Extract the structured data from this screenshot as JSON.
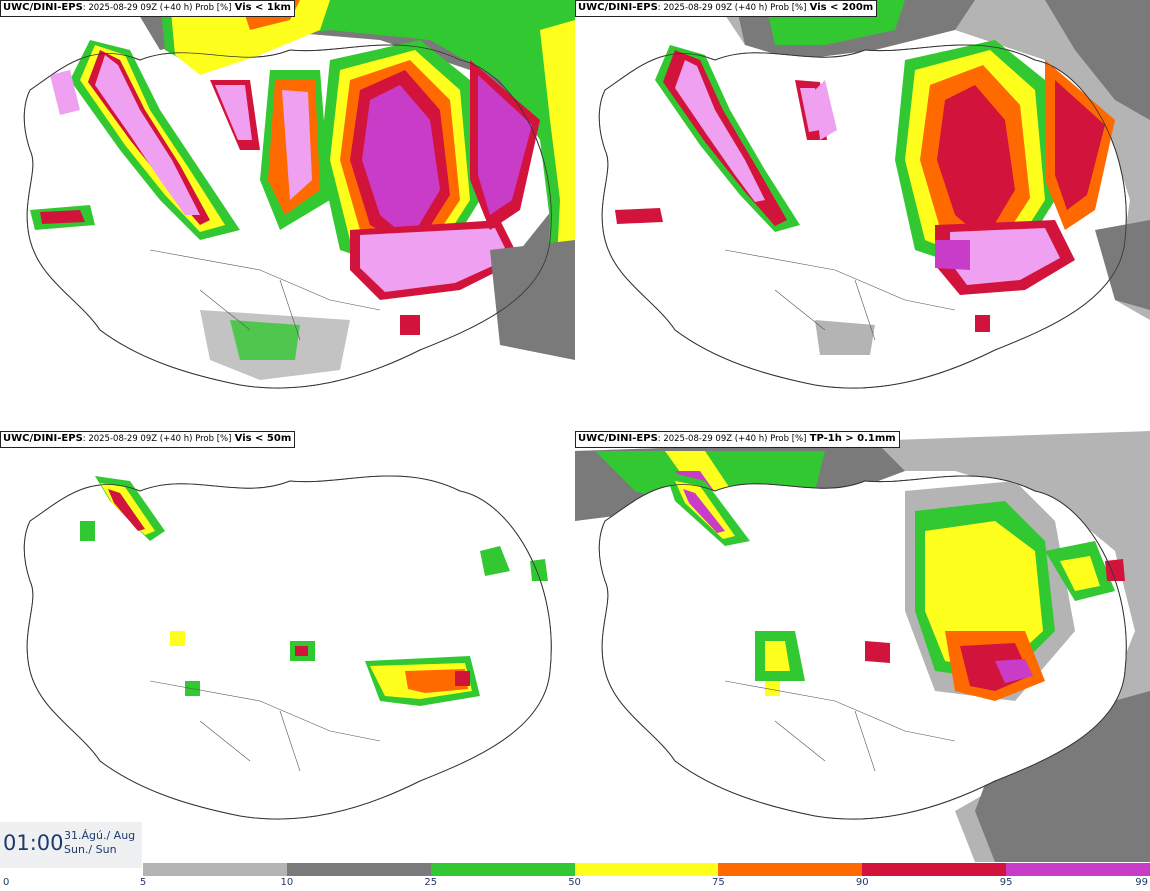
{
  "panels": [
    {
      "model": "UWC/DINI-EPS",
      "meta": ": 2025-08-29 09Z (+40 h) Prob [%]",
      "variable": "Vis < 1km"
    },
    {
      "model": "UWC/DINI-EPS",
      "meta": ": 2025-08-29 09Z (+40 h) Prob [%]",
      "variable": "Vis < 200m"
    },
    {
      "model": "UWC/DINI-EPS",
      "meta": ": 2025-08-29 09Z (+40 h) Prob [%]",
      "variable": "Vis < 50m"
    },
    {
      "model": "UWC/DINI-EPS",
      "meta": ": 2025-08-29 09Z (+40 h) Prob [%]",
      "variable": "TP-1h > 0.1mm"
    }
  ],
  "valid_time": {
    "time": "01:00",
    "date_line": "31.Ágú./ Aug",
    "day_line": "Sun./ Sun"
  },
  "colorbar": {
    "labels": [
      "0",
      "5",
      "10",
      "25",
      "50",
      "75",
      "90",
      "95",
      "99"
    ],
    "colors": [
      "#ffffff",
      "#b4b4b4",
      "#7a7a7a",
      "#32c832",
      "#ffff1e",
      "#ff6a00",
      "#d2143c",
      "#c83cc8",
      "#f0a0f0"
    ]
  }
}
